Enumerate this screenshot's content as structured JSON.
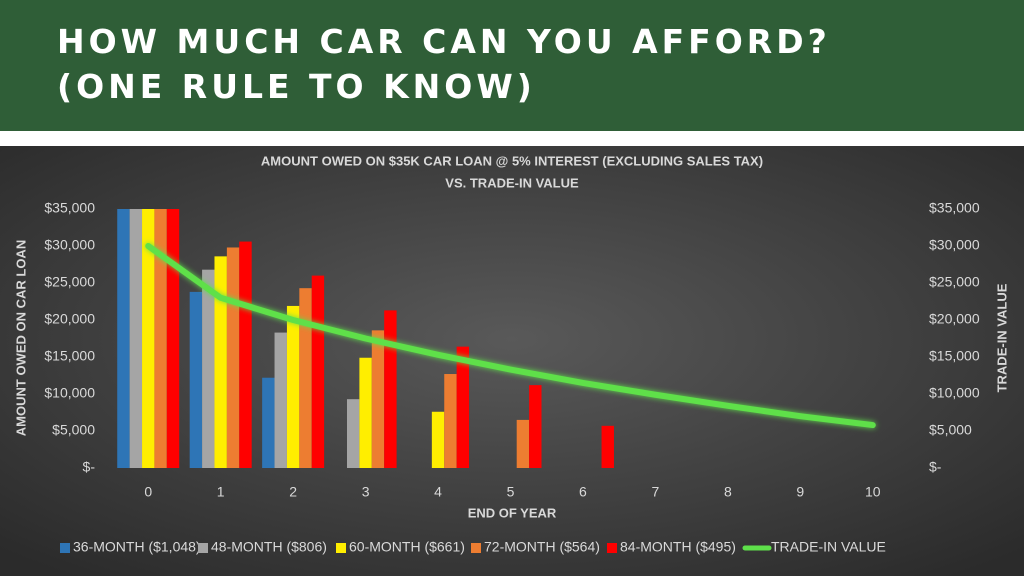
{
  "header": {
    "title_lines": [
      "HOW MUCH CAR CAN YOU AFFORD?",
      "(ONE RULE TO KNOW)"
    ]
  },
  "chart_data": {
    "type": "bar",
    "title": "AMOUNT OWED ON $35K CAR LOAN @ 5% INTEREST (EXCLUDING SALES TAX)",
    "subtitle": "VS. TRADE-IN VALUE",
    "x_label": "END OF YEAR",
    "y_label": "AMOUNT OWED ON CAR LOAN",
    "y2_label": "TRADE-IN VALUE",
    "categories": [
      "0",
      "1",
      "2",
      "3",
      "4",
      "5",
      "6",
      "7",
      "8",
      "9",
      "10"
    ],
    "series": [
      {
        "name": "36-MONTH ($1,048)",
        "color": "#2e75b6",
        "values": [
          35000,
          23800,
          12200,
          0,
          null,
          null,
          null,
          null,
          null,
          null,
          null
        ]
      },
      {
        "name": "48-MONTH ($806)",
        "color": "#a5a5a5",
        "values": [
          35000,
          26800,
          18300,
          9300,
          0,
          null,
          null,
          null,
          null,
          null,
          null
        ]
      },
      {
        "name": "60-MONTH ($661)",
        "color": "#ffee00",
        "values": [
          35000,
          28600,
          21900,
          14900,
          7600,
          0,
          null,
          null,
          null,
          null,
          null
        ]
      },
      {
        "name": "72-MONTH ($564)",
        "color": "#ed7d31",
        "values": [
          35000,
          29800,
          24300,
          18600,
          12700,
          6500,
          0,
          null,
          null,
          null,
          null
        ]
      },
      {
        "name": "84-MONTH ($495)",
        "color": "#ff0000",
        "values": [
          35000,
          30600,
          26000,
          21300,
          16400,
          11200,
          5700,
          0,
          null,
          null,
          null
        ]
      },
      {
        "name": "TRADE-IN VALUE",
        "color": "#5ee04a",
        "type": "line",
        "axis": "y2",
        "values": [
          30000,
          23000,
          20000,
          17500,
          15300,
          13300,
          11500,
          9900,
          8400,
          7000,
          5800
        ]
      }
    ],
    "ylim": [
      0,
      35000
    ],
    "yticks": [
      {
        "value": 0,
        "label": "$-"
      },
      {
        "value": 5000,
        "label": "$5,000"
      },
      {
        "value": 10000,
        "label": "$10,000"
      },
      {
        "value": 15000,
        "label": "$15,000"
      },
      {
        "value": 20000,
        "label": "$20,000"
      },
      {
        "value": 25000,
        "label": "$25,000"
      },
      {
        "value": 30000,
        "label": "$30,000"
      },
      {
        "value": 35000,
        "label": "$35,000"
      }
    ],
    "y2lim": [
      0,
      35000
    ],
    "y2ticks": [
      {
        "value": 0,
        "label": "$-"
      },
      {
        "value": 5000,
        "label": "$5,000"
      },
      {
        "value": 10000,
        "label": "$10,000"
      },
      {
        "value": 15000,
        "label": "$15,000"
      },
      {
        "value": 20000,
        "label": "$20,000"
      },
      {
        "value": 25000,
        "label": "$25,000"
      },
      {
        "value": 30000,
        "label": "$30,000"
      },
      {
        "value": 35000,
        "label": "$35,000"
      }
    ],
    "grid": false,
    "legend": "bottom"
  }
}
